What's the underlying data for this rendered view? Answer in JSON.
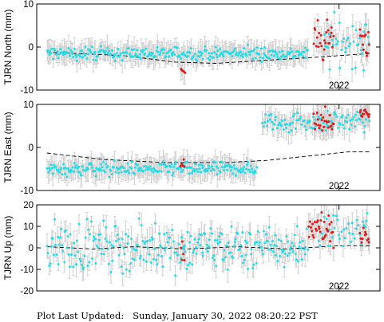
{
  "colors": {
    "primary_points": "#22dde6",
    "recent_points": "#e01a1a",
    "error_bars": "#d0d0d0",
    "trend_line": "#000000"
  },
  "footer": {
    "label": "Plot Last Updated:",
    "timestamp": "Sunday, January 30, 2022 08:20:22 PST"
  },
  "chart_data": [
    {
      "type": "scatter",
      "title": "",
      "ylabel": "TJRN North (mm)",
      "ylim": [
        -10,
        10
      ],
      "yticks": [
        -10,
        0,
        10
      ],
      "xticks": [
        {
          "x": 2022.0,
          "label": "2022"
        }
      ],
      "xlim": [
        2019.05,
        2022.4
      ],
      "grid": false,
      "legend": "none",
      "trend": [
        [
          2019.15,
          -1.2
        ],
        [
          2019.9,
          -2.0
        ],
        [
          2020.4,
          -3.5
        ],
        [
          2020.8,
          -3.8
        ],
        [
          2021.2,
          -3.2
        ],
        [
          2021.7,
          -2.5
        ],
        [
          2022.3,
          -1.5
        ]
      ],
      "blue_segments": [
        [
          2019.15,
          2021.7,
          -1.5,
          0.8,
          1.0
        ],
        [
          2021.85,
          2022.3,
          1.0,
          3.0,
          0.8
        ]
      ],
      "red_segments": [
        [
          2021.75,
          2021.95,
          2.0,
          2.5,
          1.2
        ],
        [
          2022.2,
          2022.3,
          1.5,
          2.0,
          1.2
        ],
        [
          2020.45,
          2020.5,
          -6.0,
          0.6,
          1.0
        ]
      ]
    },
    {
      "type": "scatter",
      "title": "",
      "ylabel": "TJRN East (mm)",
      "ylim": [
        -10,
        10
      ],
      "yticks": [
        -10,
        0,
        10
      ],
      "xticks": [
        {
          "x": 2022.0,
          "label": "2022"
        }
      ],
      "xlim": [
        2019.05,
        2022.4
      ],
      "grid": false,
      "legend": "none",
      "trend": [
        [
          2019.15,
          -1.3
        ],
        [
          2019.7,
          -2.8
        ],
        [
          2020.3,
          -3.5
        ],
        [
          2020.9,
          -3.5
        ],
        [
          2021.3,
          -3.0
        ],
        [
          2021.7,
          -2.0
        ],
        [
          2022.1,
          -1.0
        ],
        [
          2022.3,
          -1.0
        ]
      ],
      "blue_segments": [
        [
          2019.15,
          2021.2,
          -5.0,
          0.8,
          1.0
        ],
        [
          2021.25,
          2022.3,
          6.0,
          1.2,
          0.9
        ]
      ],
      "red_segments": [
        [
          2020.45,
          2020.5,
          -3.8,
          0.4,
          1.0
        ],
        [
          2021.75,
          2021.95,
          6.0,
          1.5,
          1.2
        ],
        [
          2022.2,
          2022.3,
          7.8,
          0.6,
          1.2
        ]
      ]
    },
    {
      "type": "scatter",
      "title": "",
      "ylabel": "TJRN Up (mm)",
      "ylim": [
        -20,
        20
      ],
      "yticks": [
        -20,
        -10,
        0,
        10,
        20
      ],
      "xticks": [
        {
          "x": 2022.0,
          "label": "2022"
        }
      ],
      "xlim": [
        2019.05,
        2022.4
      ],
      "grid": false,
      "legend": "none",
      "trend": [
        [
          2019.15,
          0.5
        ],
        [
          2019.6,
          -0.5
        ],
        [
          2020.0,
          0.5
        ],
        [
          2020.5,
          -0.5
        ],
        [
          2021.0,
          0.5
        ],
        [
          2021.5,
          -0.5
        ],
        [
          2022.0,
          1.0
        ],
        [
          2022.3,
          1.0
        ]
      ],
      "blue_segments": [
        [
          2019.15,
          2021.7,
          0.5,
          5.5,
          1.0
        ],
        [
          2021.8,
          2022.3,
          8.0,
          5.0,
          0.7
        ]
      ],
      "red_segments": [
        [
          2020.45,
          2020.5,
          0.0,
          4.0,
          1.0
        ],
        [
          2021.7,
          2021.95,
          8.0,
          4.0,
          1.2
        ],
        [
          2022.2,
          2022.3,
          7.0,
          4.0,
          1.0
        ]
      ]
    }
  ]
}
